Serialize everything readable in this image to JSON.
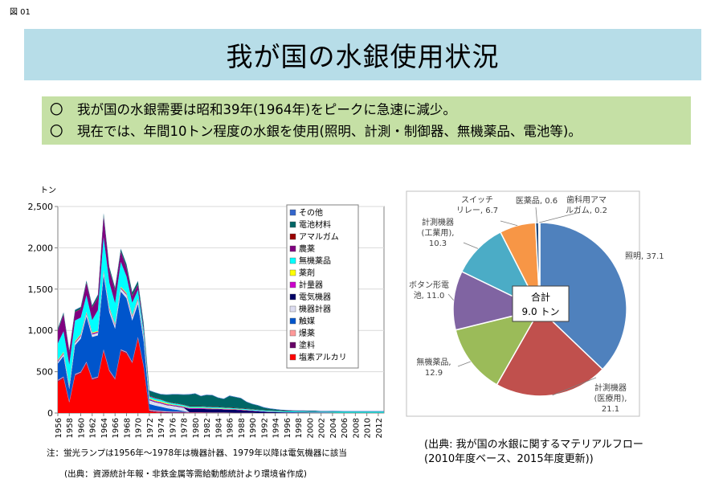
{
  "figure_no": "図 01",
  "title": "我が国の水銀使用状況",
  "summary": {
    "bullet": "〇",
    "line1": "我が国の水銀需要は昭和39年(1964年)をピークに急速に減少。",
    "line2": "現在では、年間10トン程度の水銀を使用(照明、計測・制御器、無機薬品、電池等)。"
  },
  "note": "注：蛍光ランプは1956年～1978年は機器計器、1979年以降は電気機器に該当",
  "source_left": "(出典：資源統計年報・非鉄金属等需給動態統計より環境省作成)",
  "source_right": {
    "line1": "(出典: 我が国の水銀に関するマテリアルフロー",
    "line2": "(2010年度ベース、2015年度更新))"
  },
  "colors": {
    "title_band": "#b7dde8",
    "summary_band": "#c5e0a5"
  },
  "chart_data": [
    {
      "type": "area",
      "stacked": true,
      "ylabel": "トン",
      "ylim": [
        0,
        2500
      ],
      "yticks": [
        "0",
        "500",
        "1,000",
        "1,500",
        "2,000",
        "2,500"
      ],
      "x": [
        1956,
        1957,
        1958,
        1959,
        1960,
        1961,
        1962,
        1963,
        1964,
        1965,
        1966,
        1967,
        1968,
        1969,
        1970,
        1971,
        1972,
        1973,
        1974,
        1975,
        1976,
        1977,
        1978,
        1979,
        1980,
        1981,
        1982,
        1983,
        1984,
        1985,
        1986,
        1987,
        1988,
        1989,
        1990,
        1991,
        1992,
        1993,
        1994,
        1995,
        1996,
        1997,
        1998,
        1999,
        2000,
        2001,
        2002,
        2003,
        2004,
        2005,
        2006,
        2007,
        2008,
        2009,
        2010,
        2011,
        2012,
        2013
      ],
      "xtick_labels": [
        "1956",
        "1958",
        "1960",
        "1962",
        "1964",
        "1966",
        "1968",
        "1970",
        "1972",
        "1974",
        "1976",
        "1978",
        "1980",
        "1982",
        "1984",
        "1986",
        "1988",
        "1990",
        "1992",
        "1994",
        "1996",
        "1998",
        "2000",
        "2002",
        "2004",
        "2006",
        "2008",
        "2010",
        "2012"
      ],
      "legend_position": "right",
      "legend_order": [
        "その他",
        "電池材料",
        "アマルガム",
        "農薬",
        "無機薬品",
        "薬剤",
        "計量器",
        "電気機器",
        "機器計器",
        "触媒",
        "爆薬",
        "塗料",
        "塩素アルカリ"
      ],
      "series": [
        {
          "name": "塩素アルカリ",
          "color": "#ff0000",
          "values": [
            380,
            420,
            120,
            450,
            480,
            600,
            400,
            420,
            750,
            500,
            400,
            750,
            720,
            600,
            900,
            550,
            20,
            10,
            5,
            0,
            0,
            0,
            0,
            0,
            0,
            0,
            0,
            0,
            0,
            0,
            0,
            0,
            0,
            0,
            0,
            0,
            0,
            0,
            0,
            0,
            0,
            0,
            0,
            0,
            0,
            0,
            0,
            0,
            0,
            0,
            0,
            0,
            0,
            0,
            0,
            0,
            0,
            0
          ]
        },
        {
          "name": "塗料",
          "color": "#660066",
          "values": [
            10,
            10,
            10,
            10,
            10,
            10,
            10,
            10,
            10,
            10,
            10,
            10,
            10,
            10,
            10,
            10,
            10,
            10,
            10,
            10,
            8,
            8,
            8,
            5,
            5,
            5,
            5,
            3,
            3,
            3,
            3,
            2,
            2,
            2,
            2,
            0,
            0,
            0,
            0,
            0,
            0,
            0,
            0,
            0,
            0,
            0,
            0,
            0,
            0,
            0,
            0,
            0,
            0,
            0,
            0,
            0,
            0,
            0
          ]
        },
        {
          "name": "爆薬",
          "color": "#ff9999",
          "values": [
            10,
            10,
            10,
            10,
            10,
            10,
            10,
            10,
            10,
            10,
            10,
            10,
            10,
            10,
            10,
            10,
            10,
            10,
            10,
            10,
            8,
            8,
            5,
            5,
            5,
            5,
            3,
            3,
            3,
            3,
            2,
            2,
            2,
            2,
            2,
            0,
            0,
            0,
            0,
            0,
            0,
            0,
            0,
            0,
            0,
            0,
            0,
            0,
            0,
            0,
            0,
            0,
            0,
            0,
            0,
            0,
            0,
            0
          ]
        },
        {
          "name": "触媒",
          "color": "#0055cc",
          "values": [
            200,
            250,
            150,
            350,
            400,
            550,
            500,
            500,
            900,
            700,
            600,
            700,
            650,
            500,
            400,
            300,
            70,
            60,
            50,
            40,
            30,
            20,
            10,
            0,
            0,
            0,
            0,
            0,
            0,
            0,
            0,
            0,
            0,
            0,
            0,
            0,
            0,
            0,
            0,
            0,
            0,
            0,
            0,
            0,
            0,
            0,
            0,
            0,
            0,
            0,
            0,
            0,
            0,
            0,
            0,
            0,
            0,
            0
          ]
        },
        {
          "name": "機器計器",
          "color": "#dcdcf0",
          "values": [
            20,
            25,
            20,
            25,
            30,
            30,
            30,
            30,
            35,
            35,
            35,
            35,
            40,
            40,
            45,
            45,
            45,
            40,
            40,
            35,
            40,
            40,
            40,
            0,
            0,
            0,
            0,
            0,
            0,
            0,
            0,
            0,
            0,
            0,
            0,
            0,
            0,
            0,
            0,
            0,
            0,
            0,
            0,
            0,
            0,
            0,
            0,
            0,
            0,
            0,
            0,
            0,
            0,
            0,
            0,
            0,
            0,
            0
          ]
        },
        {
          "name": "電気機器",
          "color": "#000066",
          "values": [
            5,
            5,
            5,
            5,
            5,
            5,
            5,
            5,
            5,
            5,
            5,
            5,
            5,
            5,
            5,
            5,
            5,
            5,
            5,
            5,
            5,
            5,
            5,
            40,
            40,
            40,
            40,
            40,
            40,
            35,
            35,
            35,
            30,
            25,
            20,
            20,
            15,
            12,
            10,
            8,
            6,
            5,
            5,
            5,
            4,
            4,
            3,
            3,
            3,
            2,
            2,
            2,
            2,
            2,
            2,
            2,
            2,
            2
          ]
        },
        {
          "name": "計量器",
          "color": "#cc00cc",
          "values": [
            10,
            10,
            10,
            10,
            10,
            10,
            10,
            10,
            10,
            10,
            10,
            10,
            10,
            10,
            10,
            10,
            10,
            10,
            10,
            10,
            8,
            8,
            8,
            8,
            8,
            8,
            8,
            6,
            6,
            6,
            6,
            5,
            5,
            5,
            5,
            4,
            4,
            4,
            3,
            3,
            3,
            3,
            2,
            2,
            2,
            2,
            2,
            2,
            1,
            1,
            1,
            1,
            1,
            1,
            1,
            1,
            1,
            1
          ]
        },
        {
          "name": "薬剤",
          "color": "#ffff00",
          "values": [
            10,
            10,
            10,
            10,
            10,
            10,
            10,
            10,
            10,
            10,
            10,
            10,
            10,
            10,
            10,
            10,
            10,
            10,
            10,
            10,
            5,
            5,
            5,
            5,
            5,
            5,
            5,
            5,
            5,
            5,
            5,
            3,
            3,
            3,
            3,
            2,
            2,
            2,
            2,
            1,
            1,
            1,
            1,
            1,
            1,
            1,
            1,
            1,
            1,
            1,
            1,
            1,
            1,
            1,
            1,
            1,
            1,
            1
          ]
        },
        {
          "name": "無機薬品",
          "color": "#00ffff",
          "values": [
            200,
            250,
            250,
            250,
            200,
            200,
            150,
            250,
            400,
            300,
            250,
            300,
            200,
            150,
            100,
            50,
            20,
            20,
            20,
            15,
            15,
            15,
            15,
            15,
            15,
            15,
            12,
            12,
            12,
            12,
            10,
            10,
            10,
            10,
            10,
            10,
            10,
            10,
            10,
            10,
            10,
            10,
            10,
            10,
            10,
            10,
            10,
            10,
            10,
            10,
            10,
            10,
            10,
            10,
            10,
            10,
            10,
            10
          ]
        },
        {
          "name": "農薬",
          "color": "#800080",
          "values": [
            150,
            200,
            150,
            100,
            100,
            150,
            150,
            150,
            250,
            150,
            150,
            120,
            100,
            80,
            60,
            40,
            5,
            5,
            0,
            0,
            0,
            0,
            0,
            0,
            0,
            0,
            0,
            0,
            0,
            0,
            0,
            0,
            0,
            0,
            0,
            0,
            0,
            0,
            0,
            0,
            0,
            0,
            0,
            0,
            0,
            0,
            0,
            0,
            0,
            0,
            0,
            0,
            0,
            0,
            0,
            0,
            0,
            0
          ]
        },
        {
          "name": "アマルガム",
          "color": "#990000",
          "values": [
            5,
            5,
            5,
            5,
            5,
            5,
            5,
            5,
            5,
            5,
            5,
            5,
            5,
            5,
            5,
            5,
            5,
            5,
            5,
            5,
            5,
            5,
            5,
            5,
            5,
            5,
            5,
            5,
            5,
            5,
            5,
            5,
            5,
            5,
            5,
            4,
            4,
            4,
            4,
            3,
            3,
            3,
            3,
            3,
            3,
            3,
            2,
            2,
            2,
            2,
            2,
            2,
            2,
            2,
            2,
            2,
            2,
            2
          ]
        },
        {
          "name": "電池材料",
          "color": "#006666",
          "values": [
            20,
            20,
            20,
            20,
            20,
            20,
            20,
            30,
            30,
            30,
            30,
            30,
            40,
            40,
            40,
            50,
            60,
            60,
            60,
            80,
            100,
            110,
            120,
            140,
            150,
            120,
            140,
            140,
            110,
            100,
            140,
            130,
            120,
            80,
            60,
            50,
            30,
            20,
            15,
            10,
            8,
            6,
            5,
            5,
            4,
            4,
            3,
            3,
            3,
            3,
            2,
            2,
            2,
            2,
            2,
            2,
            2,
            2
          ]
        },
        {
          "name": "その他",
          "color": "#3366cc",
          "values": [
            5,
            5,
            5,
            5,
            5,
            5,
            5,
            5,
            5,
            5,
            5,
            5,
            5,
            5,
            5,
            5,
            5,
            5,
            5,
            5,
            5,
            5,
            5,
            5,
            5,
            5,
            5,
            5,
            5,
            5,
            5,
            5,
            5,
            5,
            5,
            5,
            5,
            5,
            5,
            5,
            5,
            5,
            5,
            5,
            5,
            5,
            5,
            5,
            5,
            5,
            5,
            5,
            5,
            5,
            5,
            5,
            5,
            5
          ]
        }
      ]
    },
    {
      "type": "pie",
      "center_label": "合計",
      "center_value": "9.0 トン",
      "slices": [
        {
          "label": "照明",
          "value": 37.1,
          "color": "#4f81bd",
          "text": "照明, 37.1"
        },
        {
          "label": "計測機器(医療用)",
          "value": 21.1,
          "color": "#c0504d",
          "text": "計測機器\n(医療用),\n21.1"
        },
        {
          "label": "無機薬品",
          "value": 12.9,
          "color": "#9bbb59",
          "text": "無機薬品,\n12.9"
        },
        {
          "label": "ボタン形電池",
          "value": 11.0,
          "color": "#8064a2",
          "text": "ボタン形電\n池, 11.0"
        },
        {
          "label": "計測機器(工業用)",
          "value": 10.3,
          "color": "#4bacc6",
          "text": "計測機器\n(工業用),\n10.3"
        },
        {
          "label": "スイッチリレー",
          "value": 6.7,
          "color": "#f79646",
          "text": "スイッチ\nリレー, 6.7"
        },
        {
          "label": "医薬品",
          "value": 0.6,
          "color": "#1f497d",
          "text": "医薬品, 0.6"
        },
        {
          "label": "歯科用アマルガム",
          "value": 0.2,
          "color": "#948a54",
          "text": "歯科用アマ\nルガム, 0.2"
        }
      ]
    }
  ]
}
